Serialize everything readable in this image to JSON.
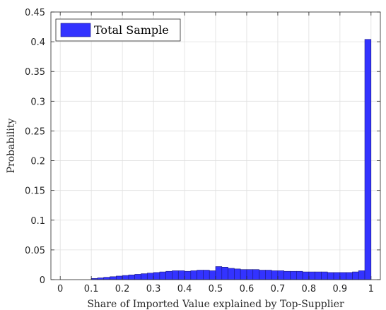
{
  "chart_data": {
    "type": "bar",
    "xlabel": "Share of Imported Value explained by Top-Supplier",
    "ylabel": "Probability",
    "xlim": [
      -0.03,
      1.03
    ],
    "ylim": [
      0,
      0.45
    ],
    "x_ticks": [
      0,
      0.1,
      0.2,
      0.3,
      0.4,
      0.5,
      0.6,
      0.7,
      0.8,
      0.9,
      1
    ],
    "x_tick_labels": [
      "0",
      "0.1",
      "0.2",
      "0.3",
      "0.4",
      "0.5",
      "0.6",
      "0.7",
      "0.8",
      "0.9",
      "1"
    ],
    "y_ticks": [
      0,
      0.05,
      0.1,
      0.15,
      0.2,
      0.25,
      0.3,
      0.35,
      0.4,
      0.45
    ],
    "y_tick_labels": [
      "0",
      "0.05",
      "0.1",
      "0.15",
      "0.2",
      "0.25",
      "0.3",
      "0.35",
      "0.4",
      "0.45"
    ],
    "grid": true,
    "legend_position": "top-left",
    "bar_color": "#3333ff",
    "bar_edge_color": "#1a1a80",
    "series": [
      {
        "name": "Total Sample",
        "bin_width": 0.02,
        "x": [
          0.1,
          0.12,
          0.14,
          0.16,
          0.18,
          0.2,
          0.22,
          0.24,
          0.26,
          0.28,
          0.3,
          0.32,
          0.34,
          0.36,
          0.38,
          0.4,
          0.42,
          0.44,
          0.46,
          0.48,
          0.5,
          0.52,
          0.54,
          0.56,
          0.58,
          0.6,
          0.62,
          0.64,
          0.66,
          0.68,
          0.7,
          0.72,
          0.74,
          0.76,
          0.78,
          0.8,
          0.82,
          0.84,
          0.86,
          0.88,
          0.9,
          0.92,
          0.94,
          0.96,
          0.98
        ],
        "values": [
          0.002,
          0.003,
          0.004,
          0.005,
          0.006,
          0.007,
          0.008,
          0.009,
          0.01,
          0.011,
          0.012,
          0.013,
          0.014,
          0.015,
          0.015,
          0.014,
          0.015,
          0.016,
          0.016,
          0.015,
          0.022,
          0.021,
          0.019,
          0.018,
          0.017,
          0.017,
          0.017,
          0.016,
          0.016,
          0.015,
          0.015,
          0.014,
          0.014,
          0.014,
          0.013,
          0.013,
          0.013,
          0.013,
          0.012,
          0.012,
          0.012,
          0.012,
          0.013,
          0.015,
          0.404
        ]
      }
    ]
  }
}
